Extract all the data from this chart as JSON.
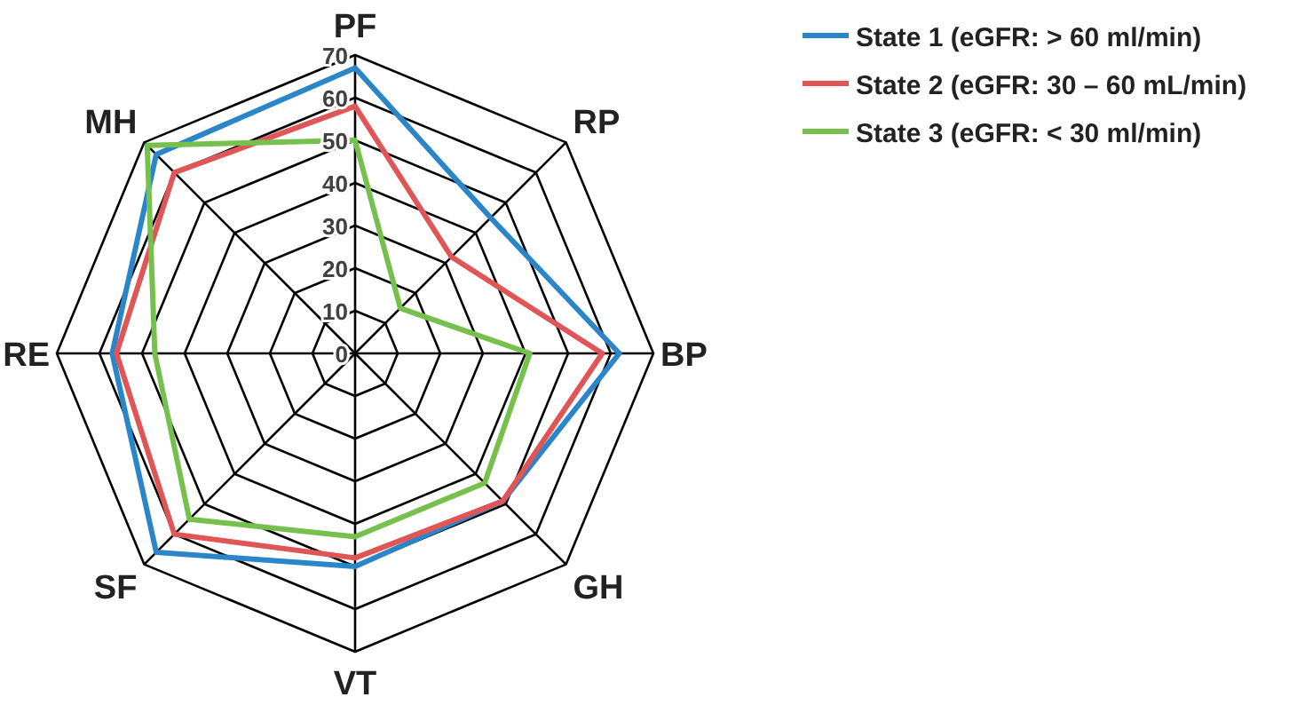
{
  "chart_data": {
    "type": "radar",
    "categories": [
      "PF",
      "RP",
      "BP",
      "GH",
      "VT",
      "SF",
      "RE",
      "MH"
    ],
    "ylim": [
      0,
      70
    ],
    "yticks": [
      0,
      10,
      20,
      30,
      40,
      50,
      60,
      70
    ],
    "grid": true,
    "legend": "top right",
    "series": [
      {
        "name": "State 1 (eGFR: > 60 ml/min)",
        "color": "#2b86c9",
        "values": [
          67,
          45,
          62,
          49,
          50,
          66,
          57,
          66
        ]
      },
      {
        "name": "State 2 (eGFR: 30 – 60 mL/min)",
        "color": "#e05555",
        "values": [
          58,
          32,
          58,
          49,
          48,
          60,
          56,
          60
        ]
      },
      {
        "name": "State 3 (eGFR: < 30 ml/min)",
        "color": "#76c04e",
        "values": [
          50,
          15,
          41,
          43,
          43,
          55,
          47,
          69
        ]
      }
    ]
  }
}
